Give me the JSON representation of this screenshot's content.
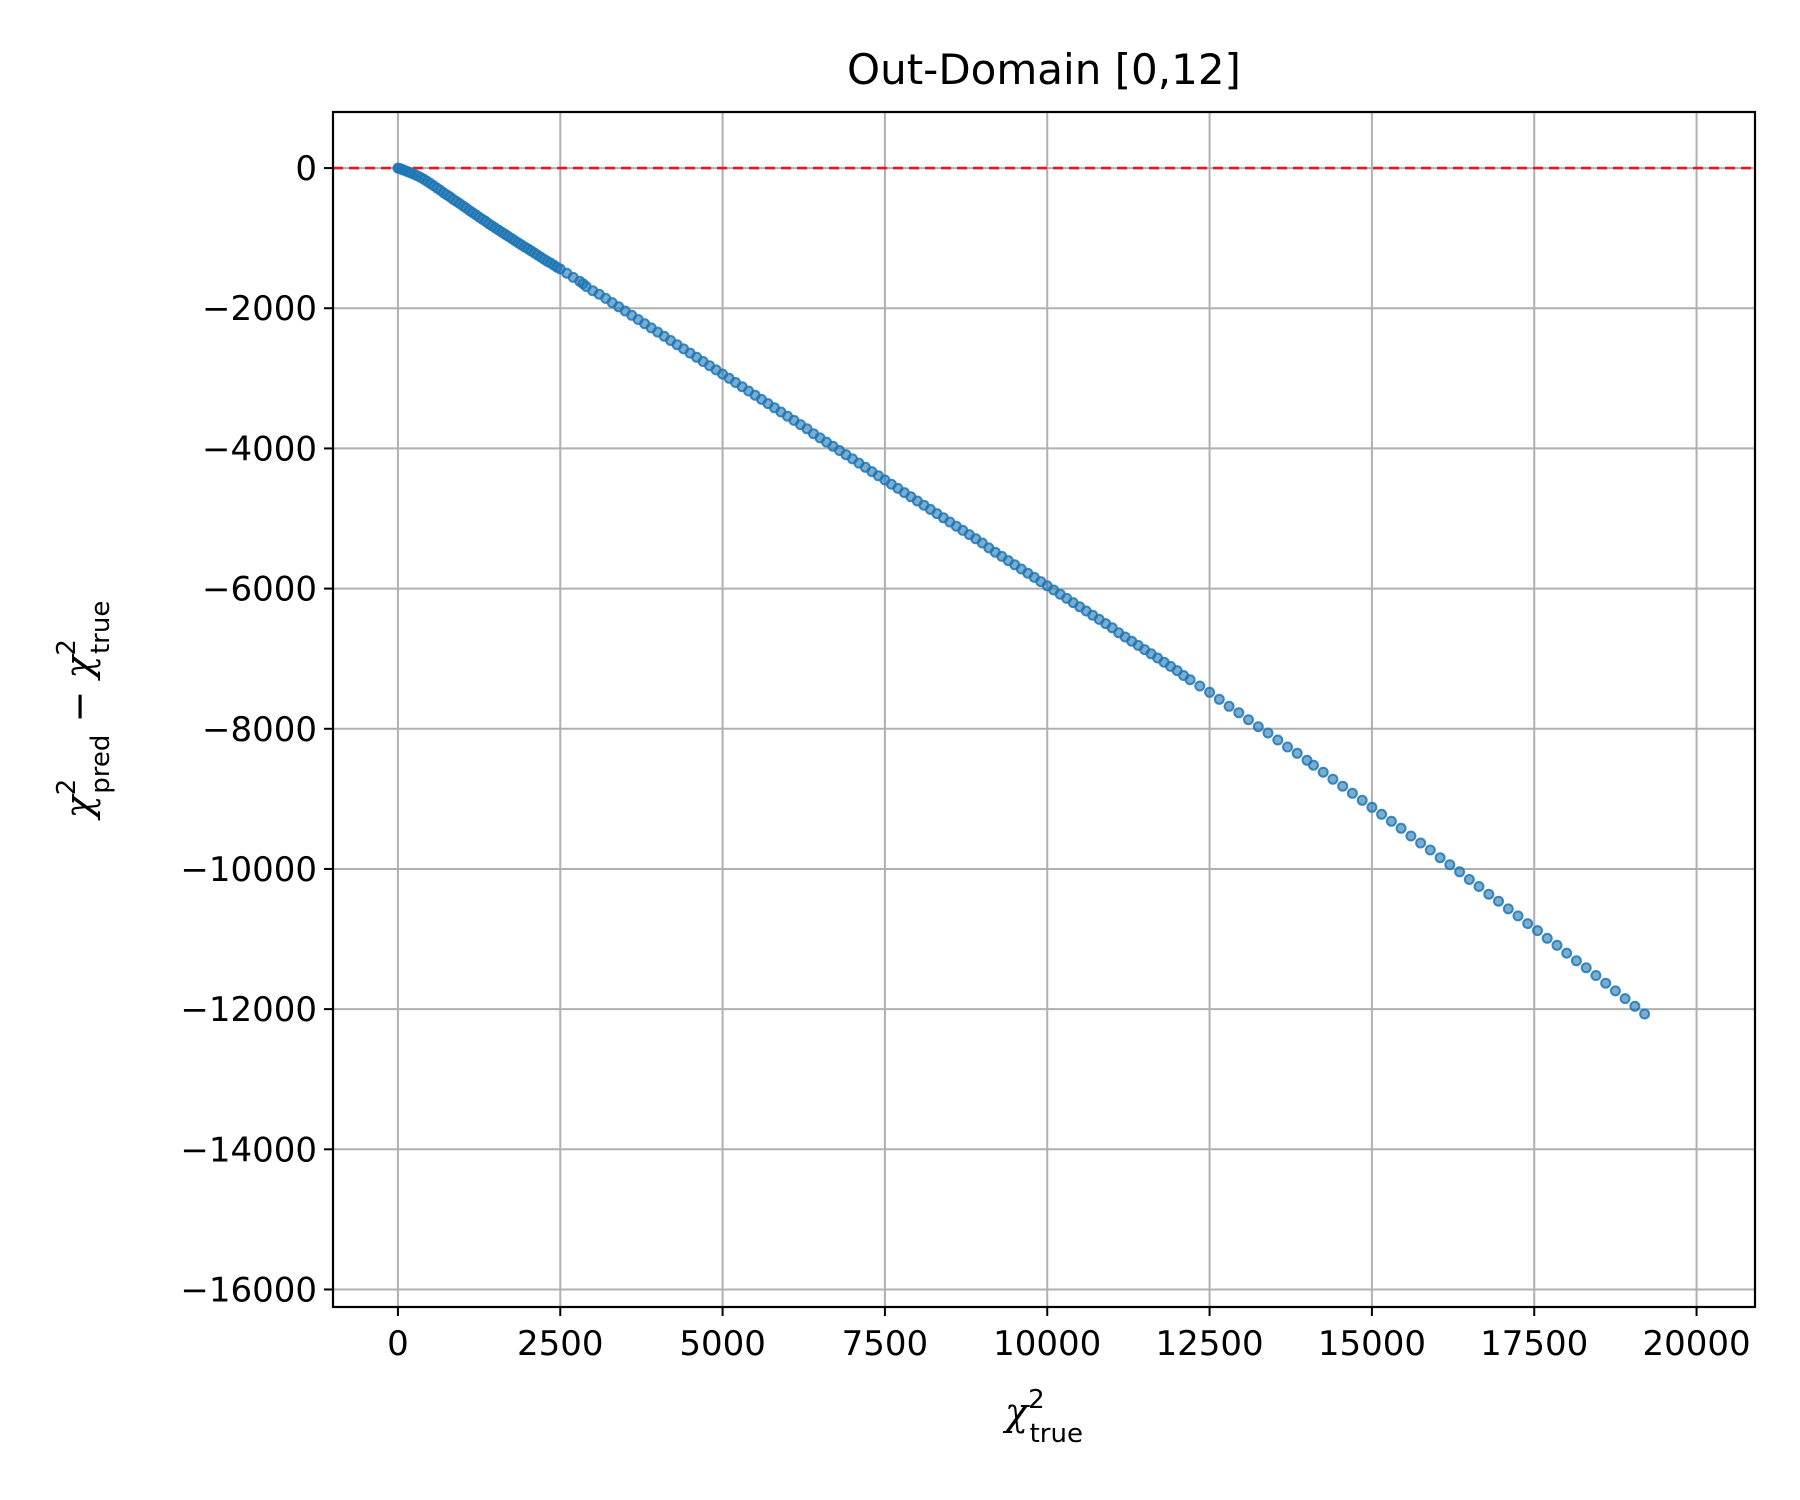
{
  "chart_data": {
    "type": "scatter",
    "title": "Out-Domain [0,12]",
    "xlabel": {
      "base": "χ",
      "sup": "2",
      "sub": "true"
    },
    "ylabel": [
      {
        "base": "χ",
        "sup": "2",
        "sub": "pred"
      },
      {
        "op": " − "
      },
      {
        "base": "χ",
        "sup": "2",
        "sub": "true"
      }
    ],
    "xlim": [
      -1000,
      20900
    ],
    "ylim": [
      -16250,
      800
    ],
    "xticks": [
      0,
      2500,
      5000,
      7500,
      10000,
      12500,
      15000,
      17500,
      20000
    ],
    "xtick_labels": [
      "0",
      "2500",
      "5000",
      "7500",
      "10000",
      "12500",
      "15000",
      "17500",
      "20000"
    ],
    "yticks": [
      0,
      -2000,
      -4000,
      -6000,
      -8000,
      -10000,
      -12000,
      -14000,
      -16000
    ],
    "ytick_labels": [
      "0",
      "−2000",
      "−4000",
      "−6000",
      "−8000",
      "−10000",
      "−12000",
      "−14000",
      "−16000"
    ],
    "grid": true,
    "reference_line": {
      "y": 0,
      "color": "#e41a1c",
      "style": "dashed"
    },
    "marker_color": "#1f77b4",
    "points": [
      [
        0,
        0
      ],
      [
        20,
        -5
      ],
      [
        50,
        -15
      ],
      [
        80,
        -25
      ],
      [
        120,
        -40
      ],
      [
        160,
        -55
      ],
      [
        200,
        -70
      ],
      [
        250,
        -90
      ],
      [
        300,
        -110
      ],
      [
        350,
        -135
      ],
      [
        400,
        -160
      ],
      [
        450,
        -190
      ],
      [
        500,
        -220
      ],
      [
        550,
        -250
      ],
      [
        600,
        -285
      ],
      [
        650,
        -315
      ],
      [
        700,
        -350
      ],
      [
        750,
        -380
      ],
      [
        800,
        -410
      ],
      [
        850,
        -445
      ],
      [
        900,
        -475
      ],
      [
        950,
        -505
      ],
      [
        1000,
        -540
      ],
      [
        1050,
        -570
      ],
      [
        1100,
        -605
      ],
      [
        1150,
        -635
      ],
      [
        1200,
        -665
      ],
      [
        1250,
        -700
      ],
      [
        1300,
        -730
      ],
      [
        1350,
        -760
      ],
      [
        1400,
        -795
      ],
      [
        1450,
        -825
      ],
      [
        1500,
        -855
      ],
      [
        1550,
        -885
      ],
      [
        1600,
        -915
      ],
      [
        1650,
        -945
      ],
      [
        1700,
        -975
      ],
      [
        1750,
        -1005
      ],
      [
        1800,
        -1035
      ],
      [
        1850,
        -1065
      ],
      [
        1900,
        -1095
      ],
      [
        1950,
        -1125
      ],
      [
        2000,
        -1150
      ],
      [
        2050,
        -1180
      ],
      [
        2100,
        -1210
      ],
      [
        2150,
        -1240
      ],
      [
        2200,
        -1270
      ],
      [
        2250,
        -1300
      ],
      [
        2300,
        -1330
      ],
      [
        2350,
        -1355
      ],
      [
        2400,
        -1385
      ],
      [
        2450,
        -1415
      ],
      [
        2500,
        -1440
      ],
      [
        2600,
        -1500
      ],
      [
        2700,
        -1560
      ],
      [
        2800,
        -1615
      ],
      [
        2850,
        -1650
      ],
      [
        2900,
        -1690
      ],
      [
        3000,
        -1750
      ],
      [
        3100,
        -1800
      ],
      [
        3200,
        -1860
      ],
      [
        3300,
        -1920
      ],
      [
        3400,
        -1980
      ],
      [
        3500,
        -2040
      ],
      [
        3600,
        -2100
      ],
      [
        3700,
        -2160
      ],
      [
        3800,
        -2220
      ],
      [
        3900,
        -2280
      ],
      [
        4000,
        -2340
      ],
      [
        4100,
        -2400
      ],
      [
        4200,
        -2460
      ],
      [
        4300,
        -2520
      ],
      [
        4400,
        -2580
      ],
      [
        4500,
        -2640
      ],
      [
        4600,
        -2700
      ],
      [
        4700,
        -2760
      ],
      [
        4800,
        -2820
      ],
      [
        4900,
        -2880
      ],
      [
        5000,
        -2940
      ],
      [
        5100,
        -3000
      ],
      [
        5200,
        -3060
      ],
      [
        5300,
        -3120
      ],
      [
        5400,
        -3180
      ],
      [
        5500,
        -3240
      ],
      [
        5600,
        -3300
      ],
      [
        5700,
        -3360
      ],
      [
        5800,
        -3420
      ],
      [
        5900,
        -3480
      ],
      [
        6000,
        -3540
      ],
      [
        6100,
        -3600
      ],
      [
        6200,
        -3660
      ],
      [
        6300,
        -3720
      ],
      [
        6400,
        -3790
      ],
      [
        6500,
        -3850
      ],
      [
        6600,
        -3910
      ],
      [
        6700,
        -3970
      ],
      [
        6800,
        -4030
      ],
      [
        6900,
        -4090
      ],
      [
        7000,
        -4150
      ],
      [
        7100,
        -4210
      ],
      [
        7200,
        -4270
      ],
      [
        7300,
        -4330
      ],
      [
        7400,
        -4390
      ],
      [
        7500,
        -4450
      ],
      [
        7600,
        -4510
      ],
      [
        7700,
        -4570
      ],
      [
        7800,
        -4630
      ],
      [
        7900,
        -4690
      ],
      [
        8000,
        -4750
      ],
      [
        8100,
        -4810
      ],
      [
        8200,
        -4870
      ],
      [
        8300,
        -4930
      ],
      [
        8400,
        -4990
      ],
      [
        8500,
        -5050
      ],
      [
        8600,
        -5110
      ],
      [
        8700,
        -5170
      ],
      [
        8800,
        -5230
      ],
      [
        8900,
        -5290
      ],
      [
        9000,
        -5350
      ],
      [
        9100,
        -5420
      ],
      [
        9200,
        -5480
      ],
      [
        9300,
        -5540
      ],
      [
        9400,
        -5600
      ],
      [
        9500,
        -5660
      ],
      [
        9600,
        -5720
      ],
      [
        9700,
        -5780
      ],
      [
        9800,
        -5840
      ],
      [
        9900,
        -5900
      ],
      [
        10000,
        -5960
      ],
      [
        10100,
        -6020
      ],
      [
        10200,
        -6080
      ],
      [
        10300,
        -6140
      ],
      [
        10400,
        -6200
      ],
      [
        10500,
        -6260
      ],
      [
        10600,
        -6320
      ],
      [
        10700,
        -6380
      ],
      [
        10800,
        -6440
      ],
      [
        10900,
        -6500
      ],
      [
        11000,
        -6560
      ],
      [
        11100,
        -6630
      ],
      [
        11200,
        -6690
      ],
      [
        11300,
        -6750
      ],
      [
        11400,
        -6810
      ],
      [
        11500,
        -6870
      ],
      [
        11600,
        -6930
      ],
      [
        11700,
        -6990
      ],
      [
        11800,
        -7050
      ],
      [
        11900,
        -7110
      ],
      [
        12000,
        -7170
      ],
      [
        12100,
        -7240
      ],
      [
        12200,
        -7300
      ],
      [
        12350,
        -7390
      ],
      [
        12500,
        -7480
      ],
      [
        12650,
        -7580
      ],
      [
        12800,
        -7680
      ],
      [
        12950,
        -7770
      ],
      [
        13100,
        -7870
      ],
      [
        13250,
        -7970
      ],
      [
        13400,
        -8060
      ],
      [
        13550,
        -8160
      ],
      [
        13700,
        -8260
      ],
      [
        13850,
        -8350
      ],
      [
        14000,
        -8450
      ],
      [
        14100,
        -8520
      ],
      [
        14250,
        -8620
      ],
      [
        14400,
        -8720
      ],
      [
        14550,
        -8820
      ],
      [
        14700,
        -8920
      ],
      [
        14850,
        -9020
      ],
      [
        15000,
        -9120
      ],
      [
        15150,
        -9220
      ],
      [
        15300,
        -9320
      ],
      [
        15450,
        -9420
      ],
      [
        15600,
        -9530
      ],
      [
        15750,
        -9630
      ],
      [
        15900,
        -9730
      ],
      [
        16050,
        -9840
      ],
      [
        16200,
        -9940
      ],
      [
        16350,
        -10040
      ],
      [
        16500,
        -10150
      ],
      [
        16650,
        -10250
      ],
      [
        16800,
        -10360
      ],
      [
        16950,
        -10460
      ],
      [
        17100,
        -10570
      ],
      [
        17250,
        -10670
      ],
      [
        17400,
        -10780
      ],
      [
        17550,
        -10880
      ],
      [
        17700,
        -10990
      ],
      [
        17850,
        -11090
      ],
      [
        18000,
        -11200
      ],
      [
        18150,
        -11310
      ],
      [
        18300,
        -11410
      ],
      [
        18450,
        -11520
      ],
      [
        18600,
        -11630
      ],
      [
        18750,
        -11740
      ],
      [
        18900,
        -11850
      ],
      [
        19050,
        -11960
      ],
      [
        19200,
        -12070
      ]
    ]
  }
}
